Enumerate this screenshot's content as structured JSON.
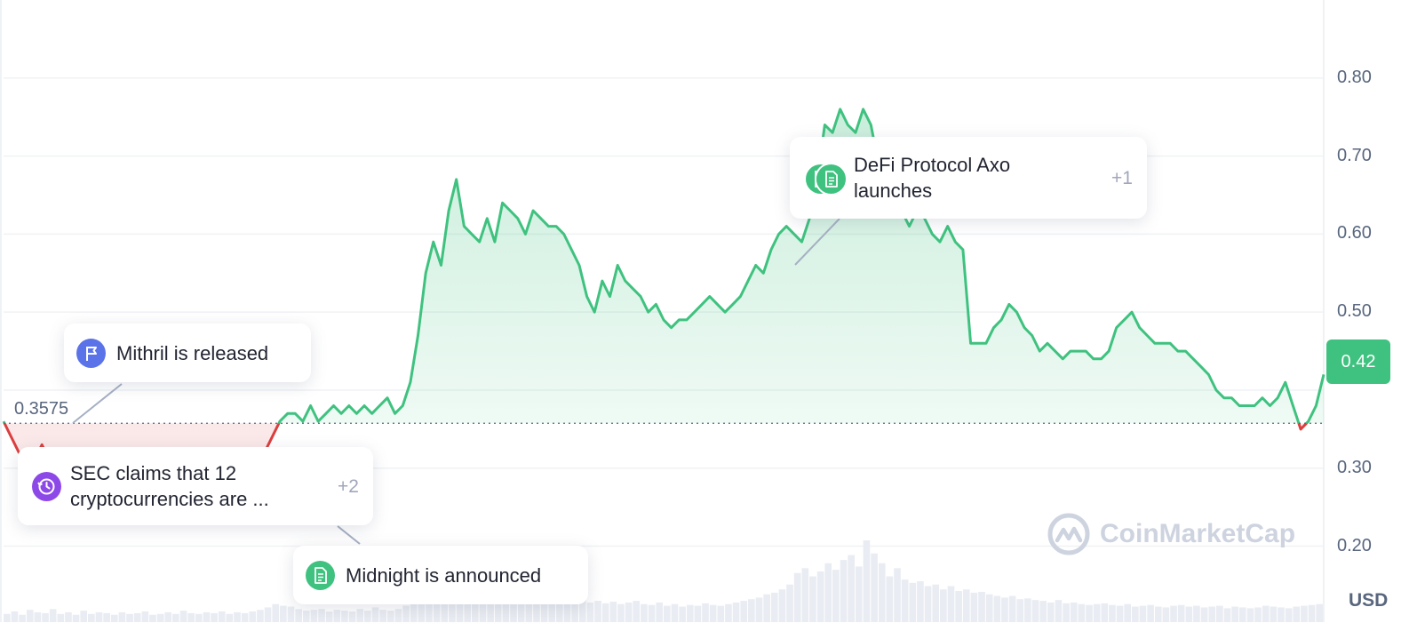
{
  "chart_data": {
    "type": "area",
    "currency": "USD",
    "reference": {
      "label": "0.3575",
      "value": 0.3575
    },
    "current_price": "0.42",
    "y_ticks": [
      "0.80",
      "0.70",
      "0.60",
      "0.50",
      "0.30",
      "0.20"
    ],
    "ylim": [
      0.13,
      0.9
    ],
    "series": [
      {
        "values": [
          0.36,
          0.34,
          0.32,
          0.32,
          0.31,
          0.33,
          0.31,
          0.31,
          0.32,
          0.3,
          0.31,
          0.3,
          0.31,
          0.3,
          0.31,
          0.3,
          0.29,
          0.29,
          0.28,
          0.28,
          0.28,
          0.28,
          0.27,
          0.27,
          0.27,
          0.27,
          0.27,
          0.27,
          0.28,
          0.27,
          0.28,
          0.28,
          0.29,
          0.3,
          0.32,
          0.34,
          0.36,
          0.37,
          0.37,
          0.36,
          0.38,
          0.36,
          0.37,
          0.38,
          0.37,
          0.38,
          0.37,
          0.38,
          0.37,
          0.38,
          0.39,
          0.37,
          0.38,
          0.41,
          0.47,
          0.55,
          0.59,
          0.56,
          0.63,
          0.67,
          0.61,
          0.6,
          0.59,
          0.62,
          0.59,
          0.64,
          0.63,
          0.62,
          0.6,
          0.63,
          0.62,
          0.61,
          0.61,
          0.6,
          0.58,
          0.56,
          0.52,
          0.5,
          0.54,
          0.52,
          0.56,
          0.54,
          0.53,
          0.52,
          0.5,
          0.51,
          0.49,
          0.48,
          0.49,
          0.49,
          0.5,
          0.51,
          0.52,
          0.51,
          0.5,
          0.51,
          0.52,
          0.54,
          0.56,
          0.55,
          0.58,
          0.6,
          0.61,
          0.6,
          0.59,
          0.62,
          0.67,
          0.74,
          0.73,
          0.76,
          0.74,
          0.73,
          0.76,
          0.74,
          0.69,
          0.65,
          0.66,
          0.63,
          0.61,
          0.63,
          0.62,
          0.6,
          0.59,
          0.61,
          0.59,
          0.58,
          0.46,
          0.46,
          0.46,
          0.48,
          0.49,
          0.51,
          0.5,
          0.48,
          0.47,
          0.45,
          0.46,
          0.45,
          0.44,
          0.45,
          0.45,
          0.45,
          0.44,
          0.44,
          0.45,
          0.48,
          0.49,
          0.5,
          0.48,
          0.47,
          0.46,
          0.46,
          0.46,
          0.45,
          0.45,
          0.44,
          0.43,
          0.42,
          0.4,
          0.39,
          0.39,
          0.38,
          0.38,
          0.38,
          0.39,
          0.38,
          0.39,
          0.41,
          0.38,
          0.35,
          0.36,
          0.38,
          0.42
        ]
      }
    ],
    "volume": [
      0.1,
      0.13,
      0.09,
      0.15,
      0.12,
      0.11,
      0.16,
      0.1,
      0.12,
      0.09,
      0.14,
      0.1,
      0.12,
      0.11,
      0.09,
      0.12,
      0.1,
      0.11,
      0.13,
      0.09,
      0.1,
      0.12,
      0.1,
      0.14,
      0.11,
      0.1,
      0.12,
      0.11,
      0.13,
      0.1,
      0.12,
      0.11,
      0.13,
      0.15,
      0.18,
      0.22,
      0.2,
      0.19,
      0.16,
      0.14,
      0.15,
      0.16,
      0.13,
      0.15,
      0.14,
      0.13,
      0.16,
      0.14,
      0.18,
      0.15,
      0.14,
      0.16,
      0.2,
      0.24,
      0.3,
      0.34,
      0.3,
      0.28,
      0.42,
      0.4,
      0.33,
      0.36,
      0.3,
      0.34,
      0.28,
      0.32,
      0.35,
      0.3,
      0.31,
      0.33,
      0.28,
      0.3,
      0.26,
      0.28,
      0.24,
      0.27,
      0.24,
      0.26,
      0.23,
      0.25,
      0.22,
      0.24,
      0.26,
      0.22,
      0.21,
      0.24,
      0.2,
      0.22,
      0.19,
      0.21,
      0.2,
      0.23,
      0.21,
      0.2,
      0.22,
      0.24,
      0.26,
      0.28,
      0.3,
      0.34,
      0.36,
      0.4,
      0.46,
      0.6,
      0.66,
      0.56,
      0.62,
      0.72,
      0.64,
      0.76,
      0.82,
      0.68,
      1.0,
      0.84,
      0.72,
      0.56,
      0.66,
      0.52,
      0.48,
      0.5,
      0.44,
      0.46,
      0.4,
      0.44,
      0.38,
      0.4,
      0.36,
      0.37,
      0.34,
      0.32,
      0.3,
      0.32,
      0.28,
      0.29,
      0.27,
      0.26,
      0.24,
      0.27,
      0.23,
      0.24,
      0.22,
      0.21,
      0.22,
      0.23,
      0.21,
      0.2,
      0.22,
      0.19,
      0.2,
      0.21,
      0.19,
      0.18,
      0.2,
      0.21,
      0.19,
      0.2,
      0.18,
      0.19,
      0.2,
      0.17,
      0.19,
      0.18,
      0.17,
      0.18,
      0.2,
      0.19,
      0.18,
      0.17,
      0.19,
      0.2,
      0.21,
      0.22
    ]
  },
  "events": [
    {
      "text": "Mithril is released",
      "icon": "flag-icon",
      "color": "#5b73e8"
    },
    {
      "text": "SEC claims that 12 cryptocurrencies are ...",
      "more": "+2",
      "icon": "clock-history-icon",
      "color": "#8d48e8"
    },
    {
      "text": "Midnight is announced",
      "icon": "document-icon",
      "color": "#3fc27f"
    },
    {
      "text": "DeFi Protocol Axo launches",
      "more": "+1",
      "icon": "document-icon",
      "color": "#3fc27f"
    }
  ],
  "colors": {
    "up": "#3fc27f",
    "down": "#db3e3e",
    "grid": "#eff2f5",
    "axis_text": "#58667e"
  },
  "watermark": "CoinMarketCap"
}
